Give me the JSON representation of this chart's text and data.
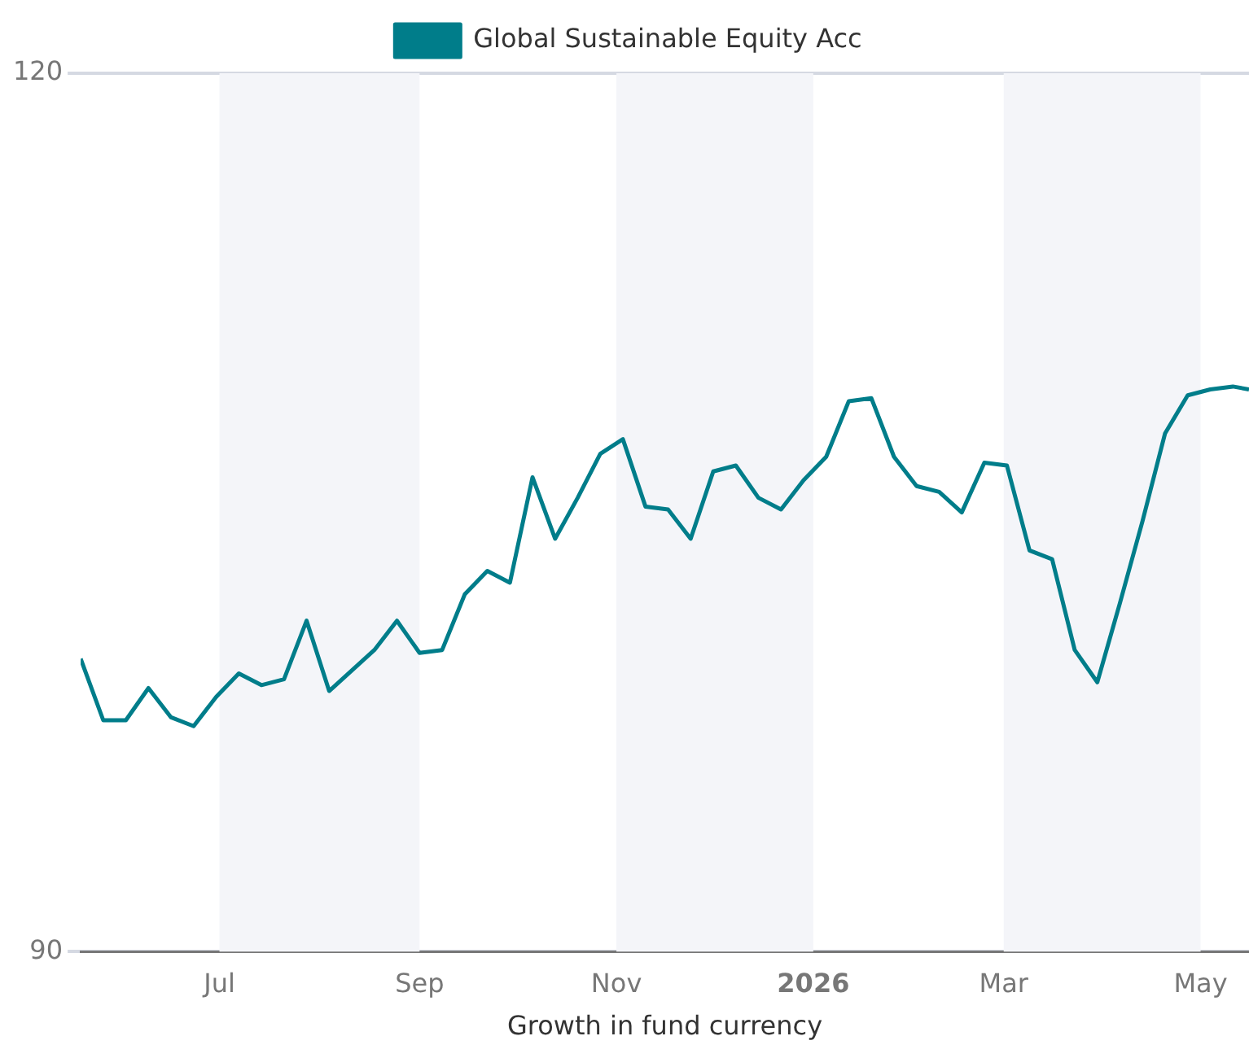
{
  "chart_data": {
    "type": "line",
    "xlabel": "Growth in fund currency",
    "x": [
      "2025-05-19",
      "2025-05-26",
      "2025-06-02",
      "2025-06-09",
      "2025-06-16",
      "2025-06-23",
      "2025-06-30",
      "2025-07-07",
      "2025-07-14",
      "2025-07-21",
      "2025-07-28",
      "2025-08-04",
      "2025-08-11",
      "2025-08-18",
      "2025-08-25",
      "2025-09-01",
      "2025-09-08",
      "2025-09-15",
      "2025-09-22",
      "2025-09-29",
      "2025-10-06",
      "2025-10-13",
      "2025-10-20",
      "2025-10-27",
      "2025-11-03",
      "2025-11-10",
      "2025-11-17",
      "2025-11-24",
      "2025-12-01",
      "2025-12-08",
      "2025-12-15",
      "2025-12-22",
      "2025-12-29",
      "2026-01-05",
      "2026-01-12",
      "2026-01-19",
      "2026-01-26",
      "2026-02-02",
      "2026-02-09",
      "2026-02-16",
      "2026-02-23",
      "2026-03-02",
      "2026-03-09",
      "2026-03-16",
      "2026-03-23",
      "2026-03-30",
      "2026-04-06",
      "2026-04-13",
      "2026-04-20",
      "2026-04-27",
      "2026-05-04",
      "2026-05-11",
      "2026-05-16"
    ],
    "series": [
      {
        "name": "Global Sustainable Equity Acc",
        "color": "#007d8a",
        "values": [
          100.0,
          97.9,
          97.9,
          99.0,
          98.0,
          97.7,
          98.7,
          99.5,
          99.1,
          99.3,
          101.3,
          98.9,
          99.6,
          100.3,
          101.3,
          100.2,
          100.3,
          102.2,
          103.0,
          102.6,
          106.2,
          104.1,
          105.5,
          107.0,
          107.5,
          105.2,
          105.1,
          104.1,
          106.4,
          106.6,
          105.5,
          105.1,
          106.1,
          106.9,
          108.8,
          108.9,
          106.9,
          105.9,
          105.7,
          105.0,
          106.7,
          106.6,
          103.7,
          103.4,
          100.3,
          99.2,
          101.9,
          104.7,
          107.7,
          109.0,
          109.2,
          109.3,
          109.2
        ]
      }
    ],
    "xlim": [
      "2025-05-19",
      "2026-05-16"
    ],
    "xticks": [
      {
        "value": "2025-07-01",
        "label": "Jul"
      },
      {
        "value": "2025-09-01",
        "label": "Sep"
      },
      {
        "value": "2025-11-01",
        "label": "Nov"
      },
      {
        "value": "2026-01-01",
        "label": "2026"
      },
      {
        "value": "2026-03-01",
        "label": "Mar"
      },
      {
        "value": "2026-05-01",
        "label": "May"
      }
    ],
    "ylim": [
      90,
      120
    ],
    "yticks": [
      90,
      120
    ],
    "bands": [
      {
        "axis": "x",
        "from": "2025-07-01",
        "to": "2025-09-01",
        "color": "#f4f5f9"
      },
      {
        "axis": "x",
        "from": "2025-11-01",
        "to": "2026-01-01",
        "color": "#f4f5f9"
      },
      {
        "axis": "x",
        "from": "2026-03-01",
        "to": "2026-05-01",
        "color": "#f4f5f9"
      }
    ],
    "grid": "y",
    "legend": "top",
    "marker": "none",
    "line_style": "solid"
  }
}
